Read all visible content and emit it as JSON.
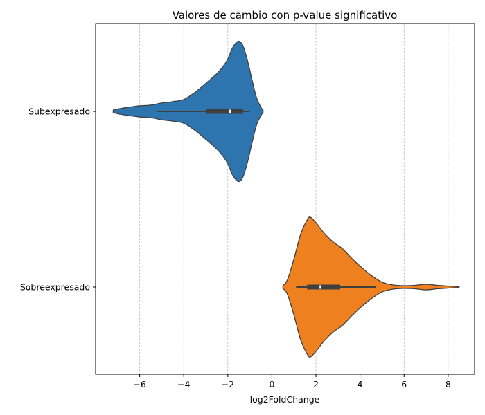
{
  "chart_data": {
    "type": "violin",
    "title": "Valores de cambio con p-value significativo",
    "xlabel": "log2FoldChange",
    "ylabel": "",
    "xlim": [
      -8.0,
      9.2
    ],
    "x_ticks": [
      -6,
      -4,
      -2,
      0,
      2,
      4,
      6,
      8
    ],
    "x_tick_labels": [
      "−6",
      "−4",
      "−2",
      "0",
      "2",
      "4",
      "6",
      "8"
    ],
    "grid": "x-dashed",
    "categories": [
      "Subexpresado",
      "Sobreexpresado"
    ],
    "violins": [
      {
        "category": "Subexpresado",
        "color": "#2e75b0",
        "min": -5.2,
        "q1": -3.0,
        "median": -1.9,
        "q3": -1.3,
        "max": -1.0,
        "density": [
          [
            -7.2,
            0.02
          ],
          [
            -6.9,
            0.04
          ],
          [
            -6.5,
            0.06
          ],
          [
            -6.0,
            0.08
          ],
          [
            -5.5,
            0.09
          ],
          [
            -5.0,
            0.12
          ],
          [
            -4.5,
            0.14
          ],
          [
            -4.0,
            0.17
          ],
          [
            -3.5,
            0.27
          ],
          [
            -3.0,
            0.4
          ],
          [
            -2.5,
            0.54
          ],
          [
            -2.2,
            0.65
          ],
          [
            -2.0,
            0.75
          ],
          [
            -1.8,
            0.9
          ],
          [
            -1.6,
            0.99
          ],
          [
            -1.45,
            1.0
          ],
          [
            -1.3,
            0.93
          ],
          [
            -1.1,
            0.72
          ],
          [
            -0.9,
            0.45
          ],
          [
            -0.7,
            0.2
          ],
          [
            -0.5,
            0.06
          ],
          [
            -0.4,
            0.02
          ]
        ]
      },
      {
        "category": "Sobreexpresado",
        "color": "#ee8020",
        "min": 1.1,
        "q1": 1.6,
        "median": 2.2,
        "q3": 3.1,
        "max": 4.7,
        "density": [
          [
            0.5,
            0.02
          ],
          [
            0.7,
            0.1
          ],
          [
            1.0,
            0.4
          ],
          [
            1.3,
            0.75
          ],
          [
            1.6,
            0.96
          ],
          [
            1.75,
            1.0
          ],
          [
            2.0,
            0.92
          ],
          [
            2.4,
            0.76
          ],
          [
            2.8,
            0.64
          ],
          [
            3.2,
            0.55
          ],
          [
            3.6,
            0.42
          ],
          [
            4.0,
            0.3
          ],
          [
            4.5,
            0.17
          ],
          [
            5.0,
            0.07
          ],
          [
            5.5,
            0.03
          ],
          [
            6.0,
            0.02
          ],
          [
            6.5,
            0.025
          ],
          [
            7.0,
            0.04
          ],
          [
            7.5,
            0.025
          ],
          [
            8.0,
            0.015
          ],
          [
            8.5,
            0.005
          ]
        ]
      }
    ]
  }
}
